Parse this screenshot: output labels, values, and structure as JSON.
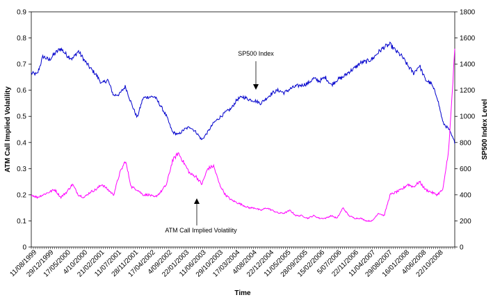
{
  "chart_data": {
    "type": "line",
    "xlabel": "Time",
    "ylabel_left": "ATM Call Implied Volatility",
    "ylabel_right": "SP500 Index Level",
    "ylim_left": [
      0,
      0.9
    ],
    "ylim_right": [
      0,
      1800
    ],
    "yticks_left": [
      "0",
      "0.1",
      "0.2",
      "0.3",
      "0.4",
      "0.5",
      "0.6",
      "0.7",
      "0.8",
      "0.9"
    ],
    "yticks_right": [
      "0",
      "200",
      "400",
      "600",
      "800",
      "1000",
      "1200",
      "1400",
      "1600",
      "1800"
    ],
    "x_tick_labels": [
      "11/08/1999",
      "29/12/1999",
      "17/05/2000",
      "4/10/2000",
      "21/02/2001",
      "11/07/2001",
      "28/11/2001",
      "17/04/2002",
      "4/09/2002",
      "22/01/2003",
      "11/06/2003",
      "29/10/2003",
      "17/03/2004",
      "4/08/2004",
      "22/12/2004",
      "11/05/2005",
      "28/09/2005",
      "15/02/2006",
      "5/07/2006",
      "22/11/2006",
      "11/04/2007",
      "29/08/2007",
      "16/01/2008",
      "4/06/2008",
      "22/10/2008"
    ],
    "annotations": [
      {
        "text": "SP500 Index",
        "series": "SP500 Index"
      },
      {
        "text": "ATM Call Implied Volatility",
        "series": "ATM Call Implied Volatility"
      }
    ],
    "series": [
      {
        "name": "SP500 Index",
        "axis": "right",
        "color": "#0000cc",
        "values": [
          1330,
          1320,
          1460,
          1430,
          1480,
          1520,
          1470,
          1440,
          1500,
          1430,
          1370,
          1320,
          1250,
          1280,
          1160,
          1170,
          1230,
          1100,
          990,
          1140,
          1150,
          1150,
          1080,
          1000,
          880,
          860,
          900,
          920,
          880,
          820,
          880,
          950,
          990,
          1030,
          1060,
          1130,
          1150,
          1130,
          1120,
          1100,
          1140,
          1180,
          1200,
          1180,
          1210,
          1230,
          1240,
          1250,
          1290,
          1270,
          1300,
          1240,
          1280,
          1300,
          1340,
          1370,
          1410,
          1420,
          1440,
          1490,
          1530,
          1550,
          1500,
          1460,
          1390,
          1330,
          1390,
          1280,
          1250,
          1150,
          950,
          900,
          800
        ]
      },
      {
        "name": "ATM Call Implied Volatility",
        "axis": "left",
        "color": "#ff00ff",
        "values": [
          0.2,
          0.19,
          0.2,
          0.21,
          0.22,
          0.19,
          0.21,
          0.24,
          0.2,
          0.19,
          0.21,
          0.22,
          0.24,
          0.22,
          0.2,
          0.28,
          0.33,
          0.23,
          0.22,
          0.2,
          0.2,
          0.19,
          0.21,
          0.24,
          0.33,
          0.36,
          0.32,
          0.28,
          0.27,
          0.24,
          0.3,
          0.31,
          0.24,
          0.2,
          0.18,
          0.17,
          0.16,
          0.15,
          0.15,
          0.14,
          0.15,
          0.14,
          0.13,
          0.13,
          0.14,
          0.12,
          0.12,
          0.11,
          0.12,
          0.11,
          0.11,
          0.12,
          0.11,
          0.15,
          0.12,
          0.11,
          0.11,
          0.1,
          0.1,
          0.13,
          0.12,
          0.2,
          0.21,
          0.22,
          0.24,
          0.23,
          0.25,
          0.22,
          0.21,
          0.2,
          0.22,
          0.38,
          0.75
        ]
      }
    ]
  }
}
